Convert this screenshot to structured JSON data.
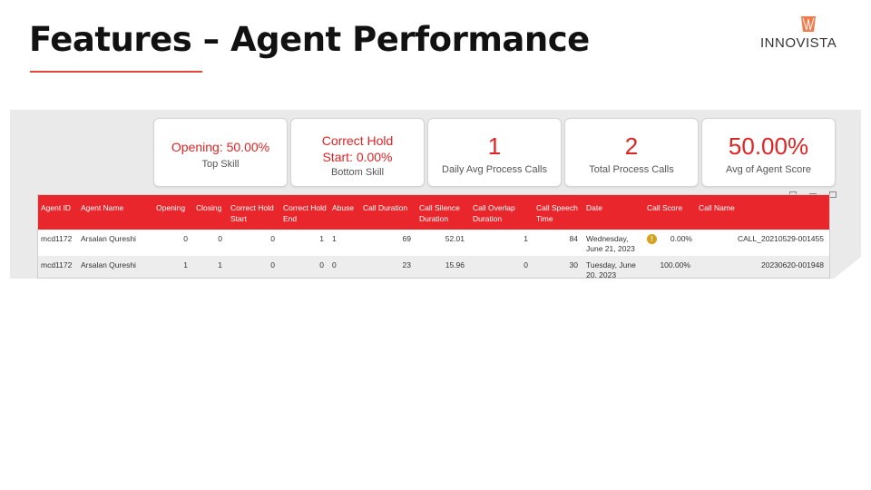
{
  "slide": {
    "title": "Features – Agent Performance",
    "logo_text": "INNOVISTA",
    "accent_color": "#e8453c"
  },
  "kpis": [
    {
      "value": "Opening: 50.00%",
      "label": "Top Skill"
    },
    {
      "value": "Correct Hold Start: 0.00%",
      "label": "Bottom Skill"
    },
    {
      "value": "1",
      "label": "Daily Avg Process Calls"
    },
    {
      "value": "2",
      "label": "Total Process Calls"
    },
    {
      "value": "50.00%",
      "label": "Avg of Agent Score"
    }
  ],
  "table": {
    "headers": [
      "Agent ID",
      "Agent Name",
      "Opening",
      "Closing",
      "Correct Hold Start",
      "Correct Hold End",
      "Abuse",
      "Call Duration",
      "Call Silence Duration",
      "Call Overlap Duration",
      "Call Speech Time",
      "Date",
      "Call Score",
      "Call Name"
    ],
    "rows": [
      {
        "agent_id": "mcd1172",
        "agent_name": "Arsalan Qureshi",
        "opening": "0",
        "closing": "0",
        "hold_start": "0",
        "hold_end": "1",
        "abuse": "1",
        "duration": "69",
        "silence": "52.01",
        "overlap": "1",
        "speech": "84",
        "date": "Wednesday, June 21, 2023",
        "score": "0.00%",
        "call_name": "CALL_20210529-001455",
        "warning_icon": "exclamation-circle"
      },
      {
        "agent_id": "mcd1172",
        "agent_name": "Arsalan Qureshi",
        "opening": "1",
        "closing": "1",
        "hold_start": "0",
        "hold_end": "0",
        "abuse": "0",
        "duration": "23",
        "silence": "15.96",
        "overlap": "0",
        "speech": "30",
        "date": "Tuesday, June 20, 2023",
        "score": "100.00%",
        "call_name": "20230620-001948"
      }
    ]
  },
  "colors": {
    "header_red": "#e8262b",
    "kpi_red": "#e02424",
    "warning": "#d9a21b"
  }
}
